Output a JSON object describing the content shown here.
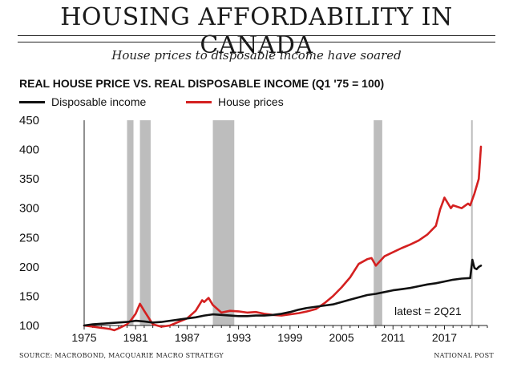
{
  "headline": "HOUSING AFFORDABILITY IN CANADA",
  "subhead": "House prices to disposable income have soared",
  "colors": {
    "disposable": "#111111",
    "house": "#d42020",
    "recession": "#bdbdbd"
  },
  "source": "SOURCE: MACROBOND, MACQUARIE MACRO STRATEGY",
  "publisher": "NATIONAL POST",
  "chart_data": {
    "type": "line",
    "title": "REAL HOUSE PRICE VS. REAL DISPOSABLE INCOME (Q1 '75 = 100)",
    "xlabel": "",
    "ylabel": "",
    "xlim": [
      1975,
      2022
    ],
    "ylim": [
      100,
      450
    ],
    "yticks": [
      100,
      150,
      200,
      250,
      300,
      350,
      400,
      450
    ],
    "xticks": [
      1975,
      1981,
      1987,
      1993,
      1999,
      2005,
      2011,
      2017
    ],
    "grid": false,
    "legend_position": "top-left",
    "annotation": "latest = 2Q21",
    "recessions": [
      [
        1980.0,
        1980.75
      ],
      [
        1981.5,
        1982.75
      ],
      [
        1990.0,
        1992.5
      ],
      [
        2008.75,
        2009.75
      ]
    ],
    "series": [
      {
        "name": "Disposable income",
        "x": [
          1975,
          1976,
          1977,
          1978,
          1979,
          1980,
          1981,
          1982,
          1983,
          1984,
          1985,
          1986,
          1987,
          1988,
          1989,
          1990,
          1991,
          1992,
          1993,
          1994,
          1995,
          1996,
          1997,
          1998,
          1999,
          2000,
          2001,
          2002,
          2003,
          2004,
          2005,
          2006,
          2007,
          2008,
          2009,
          2010,
          2011,
          2012,
          2013,
          2014,
          2015,
          2016,
          2017,
          2018,
          2019,
          2020,
          2020.25,
          2020.5,
          2020.75,
          2021,
          2021.25
        ],
        "values": [
          100,
          102,
          103,
          104,
          105,
          106,
          108,
          107,
          105,
          106,
          108,
          110,
          112,
          114,
          117,
          119,
          118,
          117,
          116,
          116,
          117,
          117,
          118,
          120,
          123,
          127,
          130,
          132,
          134,
          136,
          140,
          144,
          148,
          152,
          154,
          157,
          160,
          162,
          164,
          167,
          170,
          172,
          175,
          178,
          180,
          181,
          212,
          198,
          196,
          200,
          202
        ]
      },
      {
        "name": "House prices",
        "x": [
          1975,
          1976,
          1977,
          1978,
          1978.5,
          1979,
          1980,
          1980.5,
          1981,
          1981.5,
          1982,
          1983,
          1984,
          1985,
          1986,
          1987,
          1988,
          1988.75,
          1989,
          1989.5,
          1990,
          1991,
          1992,
          1993,
          1994,
          1995,
          1996,
          1997,
          1998,
          1999,
          2000,
          2001,
          2002,
          2003,
          2004,
          2005,
          2006,
          2007,
          2008,
          2008.5,
          2009,
          2010,
          2011,
          2012,
          2013,
          2014,
          2015,
          2016,
          2016.5,
          2017,
          2017.75,
          2018,
          2019,
          2019.75,
          2020,
          2020.5,
          2021,
          2021.25
        ],
        "values": [
          100,
          98,
          96,
          94,
          92,
          95,
          102,
          110,
          120,
          137,
          125,
          102,
          98,
          100,
          106,
          112,
          125,
          143,
          140,
          147,
          135,
          122,
          125,
          124,
          122,
          123,
          120,
          118,
          117,
          119,
          121,
          124,
          128,
          138,
          150,
          165,
          182,
          205,
          213,
          215,
          202,
          218,
          225,
          232,
          238,
          245,
          255,
          270,
          298,
          318,
          300,
          305,
          300,
          308,
          305,
          325,
          350,
          405
        ]
      }
    ]
  }
}
